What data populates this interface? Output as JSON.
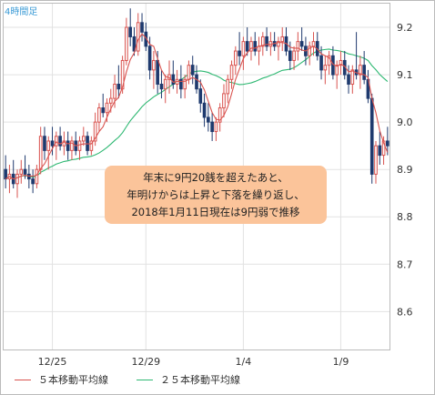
{
  "chart_data": {
    "type": "candlestick",
    "timeframe_label": "4時間足",
    "x_tick_labels": [
      {
        "label": "12/25",
        "index": 12
      },
      {
        "label": "12/29",
        "index": 36
      },
      {
        "label": "1/4",
        "index": 61
      },
      {
        "label": "1/9",
        "index": 86
      }
    ],
    "y_ticks": [
      8.6,
      8.7,
      8.8,
      8.9,
      9.0,
      9.1,
      9.2
    ],
    "ylim": [
      8.52,
      9.25
    ],
    "candles": [
      [
        8.9,
        8.93,
        8.86,
        8.88
      ],
      [
        8.88,
        8.91,
        8.85,
        8.89
      ],
      [
        8.89,
        8.92,
        8.86,
        8.87
      ],
      [
        8.87,
        8.9,
        8.84,
        8.89
      ],
      [
        8.89,
        8.92,
        8.87,
        8.9
      ],
      [
        8.9,
        8.93,
        8.88,
        8.89
      ],
      [
        8.89,
        8.91,
        8.86,
        8.88
      ],
      [
        8.88,
        8.9,
        8.85,
        8.87
      ],
      [
        8.87,
        8.91,
        8.86,
        8.9
      ],
      [
        8.9,
        8.99,
        8.89,
        8.97
      ],
      [
        8.97,
        8.99,
        8.92,
        8.94
      ],
      [
        8.94,
        8.97,
        8.9,
        8.96
      ],
      [
        8.96,
        8.99,
        8.93,
        8.95
      ],
      [
        8.95,
        8.98,
        8.92,
        8.97
      ],
      [
        8.97,
        8.99,
        8.94,
        8.95
      ],
      [
        8.95,
        8.98,
        8.93,
        8.96
      ],
      [
        8.96,
        8.98,
        8.92,
        8.94
      ],
      [
        8.94,
        8.97,
        8.92,
        8.96
      ],
      [
        8.96,
        8.98,
        8.93,
        8.94
      ],
      [
        8.94,
        8.97,
        8.92,
        8.96
      ],
      [
        8.96,
        8.99,
        8.95,
        8.97
      ],
      [
        8.97,
        8.98,
        8.93,
        8.94
      ],
      [
        8.94,
        8.97,
        8.93,
        8.96
      ],
      [
        8.96,
        9.02,
        8.95,
        9.0
      ],
      [
        9.0,
        9.04,
        8.98,
        9.03
      ],
      [
        9.03,
        9.06,
        9.01,
        9.02
      ],
      [
        9.02,
        9.05,
        9.0,
        9.04
      ],
      [
        9.04,
        9.07,
        9.02,
        9.05
      ],
      [
        9.05,
        9.1,
        9.03,
        9.08
      ],
      [
        9.08,
        9.12,
        9.05,
        9.07
      ],
      [
        9.07,
        9.14,
        9.06,
        9.13
      ],
      [
        9.13,
        9.22,
        9.12,
        9.2
      ],
      [
        9.2,
        9.24,
        9.16,
        9.18
      ],
      [
        9.18,
        9.2,
        9.14,
        9.15
      ],
      [
        9.15,
        9.23,
        9.14,
        9.21
      ],
      [
        9.21,
        9.23,
        9.17,
        9.19
      ],
      [
        9.19,
        9.21,
        9.15,
        9.16
      ],
      [
        9.16,
        9.18,
        9.09,
        9.11
      ],
      [
        9.11,
        9.15,
        9.07,
        9.13
      ],
      [
        9.13,
        9.15,
        9.06,
        9.08
      ],
      [
        9.08,
        9.11,
        9.05,
        9.07
      ],
      [
        9.07,
        9.1,
        9.04,
        9.09
      ],
      [
        9.09,
        9.13,
        9.06,
        9.1
      ],
      [
        9.1,
        9.13,
        9.07,
        9.08
      ],
      [
        9.08,
        9.11,
        9.06,
        9.09
      ],
      [
        9.09,
        9.12,
        9.05,
        9.07
      ],
      [
        9.07,
        9.1,
        9.05,
        9.09
      ],
      [
        9.09,
        9.13,
        9.08,
        9.12
      ],
      [
        9.12,
        9.14,
        9.08,
        9.1
      ],
      [
        9.1,
        9.12,
        9.06,
        9.07
      ],
      [
        9.07,
        9.09,
        9.02,
        9.04
      ],
      [
        9.04,
        9.06,
        8.99,
        9.01
      ],
      [
        9.01,
        9.04,
        8.98,
        9.0
      ],
      [
        9.0,
        9.02,
        8.96,
        8.98
      ],
      [
        8.98,
        9.01,
        8.96,
        9.0
      ],
      [
        9.0,
        9.04,
        8.98,
        9.03
      ],
      [
        9.03,
        9.08,
        9.01,
        9.06
      ],
      [
        9.06,
        9.1,
        9.04,
        9.09
      ],
      [
        9.09,
        9.13,
        9.07,
        9.12
      ],
      [
        9.12,
        9.16,
        9.1,
        9.15
      ],
      [
        9.15,
        9.19,
        9.12,
        9.14
      ],
      [
        9.14,
        9.18,
        9.11,
        9.17
      ],
      [
        9.17,
        9.2,
        9.14,
        9.15
      ],
      [
        9.15,
        9.18,
        9.13,
        9.17
      ],
      [
        9.17,
        9.19,
        9.14,
        9.15
      ],
      [
        9.15,
        9.18,
        9.12,
        9.16
      ],
      [
        9.16,
        9.19,
        9.14,
        9.18
      ],
      [
        9.18,
        9.2,
        9.15,
        9.16
      ],
      [
        9.16,
        9.19,
        9.14,
        9.17
      ],
      [
        9.17,
        9.19,
        9.15,
        9.16
      ],
      [
        9.16,
        9.18,
        9.13,
        9.17
      ],
      [
        9.17,
        9.2,
        9.15,
        9.18
      ],
      [
        9.18,
        9.2,
        9.14,
        9.15
      ],
      [
        9.15,
        9.17,
        9.11,
        9.13
      ],
      [
        9.13,
        9.16,
        9.11,
        9.15
      ],
      [
        9.15,
        9.19,
        9.13,
        9.17
      ],
      [
        9.17,
        9.2,
        9.15,
        9.16
      ],
      [
        9.16,
        9.18,
        9.12,
        9.14
      ],
      [
        9.14,
        9.17,
        9.12,
        9.16
      ],
      [
        9.16,
        9.19,
        9.14,
        9.17
      ],
      [
        9.17,
        9.19,
        9.13,
        9.14
      ],
      [
        9.14,
        9.16,
        9.09,
        9.11
      ],
      [
        9.11,
        9.14,
        9.08,
        9.12
      ],
      [
        9.12,
        9.15,
        9.1,
        9.14
      ],
      [
        9.14,
        9.16,
        9.09,
        9.1
      ],
      [
        9.1,
        9.13,
        9.07,
        9.12
      ],
      [
        9.12,
        9.15,
        9.1,
        9.13
      ],
      [
        9.13,
        9.15,
        9.09,
        9.1
      ],
      [
        9.1,
        9.12,
        9.06,
        9.08
      ],
      [
        9.08,
        9.12,
        9.06,
        9.11
      ],
      [
        9.11,
        9.19,
        9.09,
        9.1
      ],
      [
        9.1,
        9.14,
        9.07,
        9.12
      ],
      [
        9.12,
        9.15,
        9.08,
        9.09
      ],
      [
        9.09,
        9.11,
        9.04,
        9.05
      ],
      [
        9.05,
        9.06,
        8.87,
        8.89
      ],
      [
        8.89,
        8.96,
        8.87,
        8.95
      ],
      [
        8.95,
        8.98,
        8.91,
        8.93
      ],
      [
        8.93,
        8.97,
        8.91,
        8.96
      ],
      [
        8.96,
        8.99,
        8.93,
        8.95
      ]
    ],
    "series": [
      {
        "name": "５本移動平均線",
        "color": "#d9534f"
      },
      {
        "name": "２５本移動平均線",
        "color": "#2eb872"
      }
    ],
    "colors": {
      "up": "#d9534f",
      "down": "#1f3a6e",
      "grid": "#e2e2e2",
      "frame": "#bbbbbb"
    }
  },
  "annotation": {
    "lines": [
      "年末に9円20銭を超えたあと、",
      "年明けからは上昇と下落を繰り返し、",
      "2018年1月11日現在は9円弱で推移"
    ]
  }
}
